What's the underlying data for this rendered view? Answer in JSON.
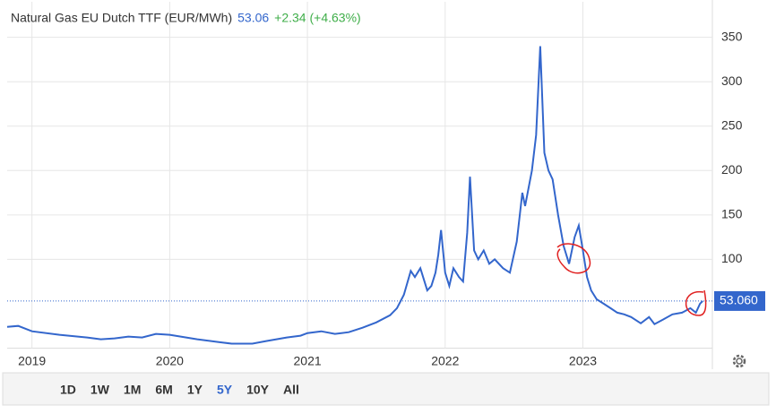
{
  "chart_data": {
    "type": "line",
    "title": "Natural Gas EU Dutch TTF (EUR/MWh)",
    "price": 53.06,
    "change": "+2.34 (+4.63%)",
    "last_price": {
      "value": 53.06,
      "label": "53.060"
    },
    "series": [
      {
        "name": "Natural Gas EU Dutch TTF",
        "color": "#3366cc",
        "x": [
          2018.82,
          2018.9,
          2019.0,
          2019.2,
          2019.4,
          2019.5,
          2019.6,
          2019.7,
          2019.8,
          2019.9,
          2020.0,
          2020.2,
          2020.35,
          2020.45,
          2020.6,
          2020.7,
          2020.85,
          2020.95,
          2021.0,
          2021.1,
          2021.2,
          2021.3,
          2021.4,
          2021.5,
          2021.6,
          2021.65,
          2021.7,
          2021.75,
          2021.78,
          2021.82,
          2021.87,
          2021.9,
          2021.93,
          2021.95,
          2021.97,
          2022.0,
          2022.03,
          2022.06,
          2022.1,
          2022.13,
          2022.16,
          2022.18,
          2022.21,
          2022.24,
          2022.28,
          2022.32,
          2022.36,
          2022.42,
          2022.47,
          2022.52,
          2022.56,
          2022.58,
          2022.63,
          2022.66,
          2022.69,
          2022.72,
          2022.75,
          2022.78,
          2022.82,
          2022.86,
          2022.9,
          2022.94,
          2022.97,
          2023.0,
          2023.03,
          2023.06,
          2023.1,
          2023.15,
          2023.2,
          2023.25,
          2023.3,
          2023.35,
          2023.42,
          2023.48,
          2023.52,
          2023.58,
          2023.65,
          2023.72,
          2023.78,
          2023.82,
          2023.85,
          2023.87
        ],
        "values": [
          24,
          25,
          19,
          15,
          12,
          10,
          11,
          13,
          12,
          16,
          15,
          10,
          7,
          5,
          5,
          8,
          12,
          14,
          17,
          19,
          16,
          18,
          23,
          29,
          37,
          45,
          60,
          87,
          80,
          90,
          65,
          70,
          85,
          105,
          133,
          85,
          70,
          90,
          80,
          75,
          130,
          193,
          110,
          100,
          110,
          95,
          100,
          90,
          85,
          120,
          175,
          160,
          200,
          240,
          340,
          220,
          200,
          190,
          150,
          115,
          95,
          125,
          138,
          110,
          80,
          65,
          55,
          50,
          45,
          40,
          38,
          35,
          28,
          35,
          27,
          32,
          38,
          40,
          45,
          40,
          50,
          53.06
        ]
      }
    ],
    "xlim": [
      2018.82,
      2023.94
    ],
    "xticks": [
      2019,
      2020,
      2021,
      2022,
      2023
    ],
    "ylim": [
      0,
      390
    ],
    "yticks": [
      100,
      150,
      200,
      250,
      300,
      350
    ],
    "grid": true,
    "ranges": [
      "1D",
      "1W",
      "1M",
      "6M",
      "1Y",
      "5Y",
      "10Y",
      "All"
    ],
    "active_range": "5Y"
  }
}
